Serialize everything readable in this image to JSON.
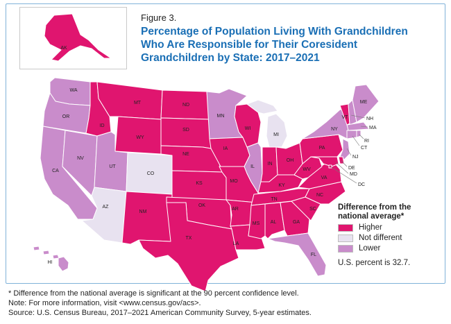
{
  "figure_label": "Figure 3.",
  "title_lines": [
    "Percentage of Population Living With Grandchildren",
    "Who Are Responsible for Their Coresident",
    "Grandchildren by State: 2017–2021"
  ],
  "legend": {
    "title_lines": [
      "Difference from the",
      "national average*"
    ],
    "items": [
      {
        "label": "Higher",
        "color": "#e0156f"
      },
      {
        "label": "Not different",
        "color": "#e8e2f0"
      },
      {
        "label": "Lower",
        "color": "#c98ccb"
      }
    ]
  },
  "us_percent_text": "U.S. percent is 32.7.",
  "footer_lines": [
    "* Difference from the national average is significant at the 90 percent confidence level.",
    "Note: For more information, visit <www.census.gov/acs>.",
    "Source: U.S. Census Bureau, 2017–2021 American Community Survey, 5-year estimates."
  ],
  "states": {
    "AK": "Higher",
    "HI": "Lower",
    "WA": "Lower",
    "OR": "Lower",
    "CA": "Lower",
    "NV": "Lower",
    "ID": "Higher",
    "MT": "Higher",
    "WY": "Higher",
    "UT": "Lower",
    "CO": "Not different",
    "AZ": "Not different",
    "NM": "Higher",
    "ND": "Higher",
    "SD": "Higher",
    "NE": "Higher",
    "KS": "Higher",
    "OK": "Higher",
    "TX": "Higher",
    "MN": "Lower",
    "IA": "Higher",
    "MO": "Higher",
    "AR": "Higher",
    "LA": "Higher",
    "WI": "Higher",
    "IL": "Lower",
    "MI": "Not different",
    "IN": "Higher",
    "OH": "Higher",
    "KY": "Higher",
    "TN": "Higher",
    "MS": "Higher",
    "AL": "Higher",
    "GA": "Higher",
    "FL": "Lower",
    "SC": "Higher",
    "NC": "Higher",
    "VA": "Higher",
    "WV": "Higher",
    "PA": "Higher",
    "NY": "Lower",
    "VT": "Higher",
    "NH": "Lower",
    "ME": "Lower",
    "MA": "Lower",
    "RI": "Lower",
    "CT": "Lower",
    "NJ": "Lower",
    "DE": "Higher",
    "MD": "Higher",
    "DC": "Higher"
  },
  "colors": {
    "Higher": "#e0156f",
    "Not different": "#e8e2f0",
    "Lower": "#c98ccb",
    "border": "#ffffff",
    "frame": "#7fb2d9",
    "title": "#1a6fb5"
  }
}
